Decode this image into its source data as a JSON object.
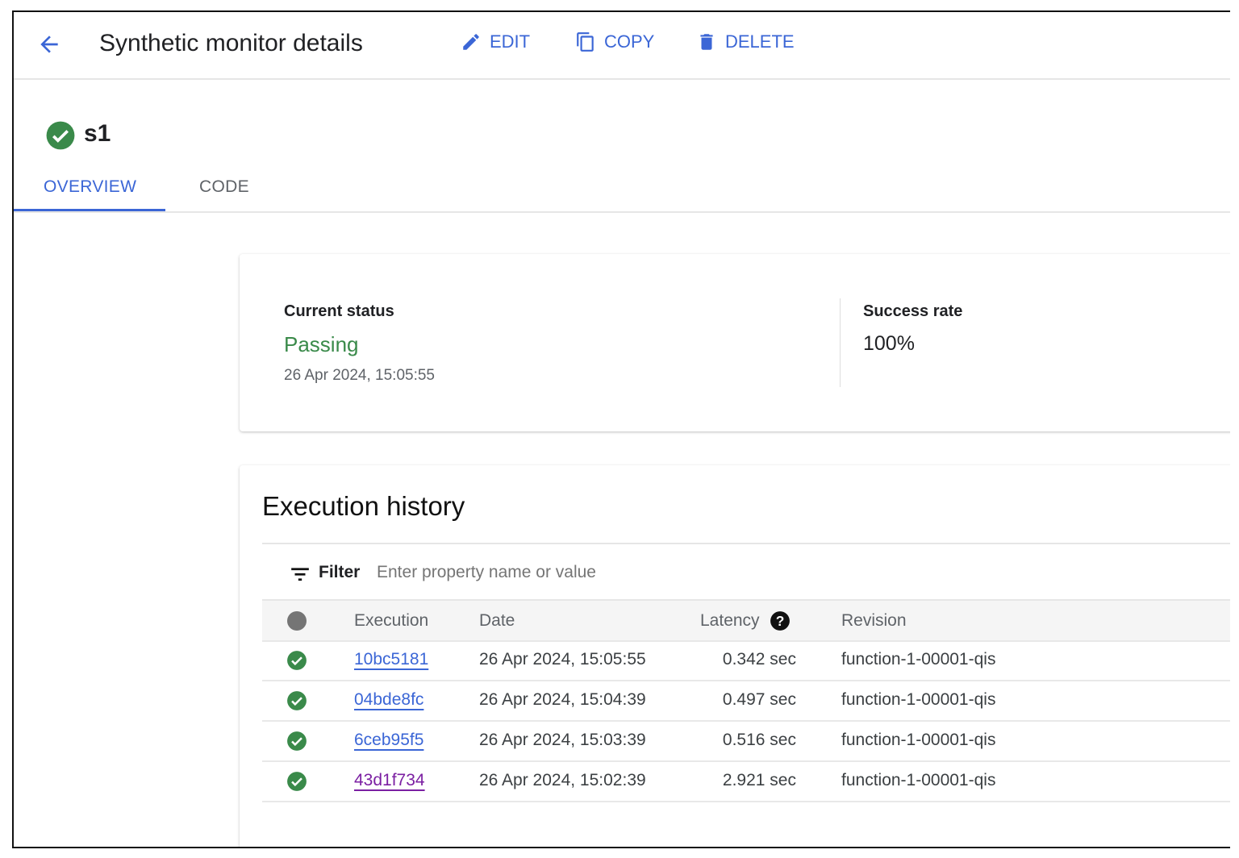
{
  "header": {
    "title": "Synthetic monitor details",
    "edit_label": "EDIT",
    "copy_label": "COPY",
    "delete_label": "DELETE"
  },
  "monitor": {
    "name": "s1",
    "status_icon": "check-circle-icon"
  },
  "tabs": [
    {
      "label": "OVERVIEW",
      "active": true
    },
    {
      "label": "CODE",
      "active": false
    }
  ],
  "status_card": {
    "current_status_label": "Current status",
    "current_status": "Passing",
    "timestamp": "26 Apr 2024, 15:05:55",
    "success_rate_label": "Success rate",
    "success_rate": "100%"
  },
  "history": {
    "title": "Execution history",
    "filter_label": "Filter",
    "filter_placeholder": "Enter property name or value",
    "columns": [
      "Execution",
      "Date",
      "Latency",
      "Revision"
    ],
    "rows": [
      {
        "execution": "10bc5181",
        "date": "26 Apr 2024, 15:05:55",
        "latency": "0.342 sec",
        "revision": "function-1-00001-qis",
        "visited": false
      },
      {
        "execution": "04bde8fc",
        "date": "26 Apr 2024, 15:04:39",
        "latency": "0.497 sec",
        "revision": "function-1-00001-qis",
        "visited": false
      },
      {
        "execution": "6ceb95f5",
        "date": "26 Apr 2024, 15:03:39",
        "latency": "0.516 sec",
        "revision": "function-1-00001-qis",
        "visited": false
      },
      {
        "execution": "43d1f734",
        "date": "26 Apr 2024, 15:02:39",
        "latency": "2.921 sec",
        "revision": "function-1-00001-qis",
        "visited": true
      }
    ]
  },
  "colors": {
    "accent": "#3b66d6",
    "success": "#34a853",
    "passing_text": "#3a8a4a",
    "visited_link": "#7b1fa2"
  }
}
